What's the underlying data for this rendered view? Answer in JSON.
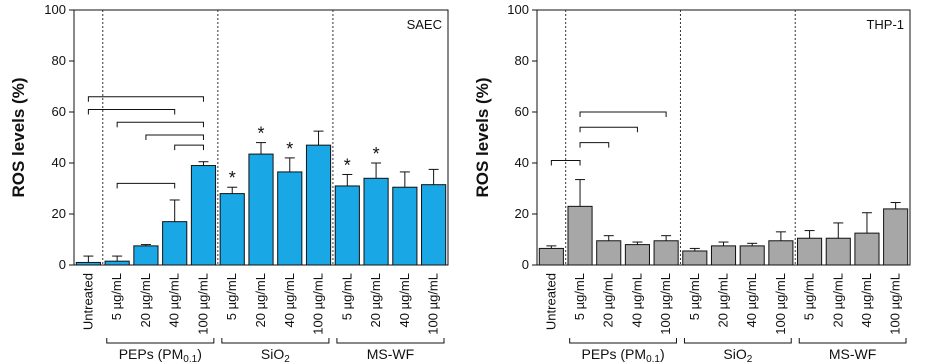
{
  "chart_data": [
    {
      "type": "bar",
      "panel_label": "SAEC",
      "ylabel": "ROS levels (%)",
      "ylim": [
        0,
        100
      ],
      "yticks": [
        "0",
        "20",
        "40",
        "60",
        "80",
        "100"
      ],
      "bar_color": "#1aa7e6",
      "categories": [
        "Untreated",
        "5 µg/mL",
        "20 µg/mL",
        "40 µg/mL",
        "100 µg/mL",
        "5 µg/mL",
        "20 µg/mL",
        "40 µg/mL",
        "100 µg/mL",
        "5 µg/mL",
        "20 µg/mL",
        "40 µg/mL",
        "100 µg/mL"
      ],
      "values": [
        1,
        1.5,
        7.5,
        17,
        39,
        28,
        43.5,
        36.5,
        47,
        31,
        34,
        30.5,
        31.5
      ],
      "errors": [
        2.5,
        2,
        0.5,
        8.5,
        1.5,
        2.5,
        4.5,
        5.5,
        5.5,
        4.5,
        6,
        6,
        6
      ],
      "significant": [
        false,
        false,
        false,
        false,
        false,
        true,
        true,
        true,
        false,
        true,
        true,
        false,
        false
      ],
      "star_symbol": "*",
      "groups": [
        {
          "label_main": "PEPs (PM",
          "label_sub": "0.1",
          "label_tail": ")",
          "start": 1,
          "end": 4
        },
        {
          "label_main": "SiO",
          "label_sub": "2",
          "label_tail": "",
          "start": 5,
          "end": 8
        },
        {
          "label_main": "MS-WF",
          "label_sub": "",
          "label_tail": "",
          "start": 9,
          "end": 12
        }
      ],
      "brackets": [
        {
          "from": 0,
          "to": 4,
          "y": 66
        },
        {
          "from": 0,
          "to": 3,
          "y": 61
        },
        {
          "from": 1,
          "to": 4,
          "y": 56
        },
        {
          "from": 2,
          "to": 4,
          "y": 51
        },
        {
          "from": 3,
          "to": 4,
          "y": 47
        },
        {
          "from": 1,
          "to": 3,
          "y": 32
        }
      ]
    },
    {
      "type": "bar",
      "panel_label": "THP-1",
      "ylabel": "ROS levels (%)",
      "ylim": [
        0,
        100
      ],
      "yticks": [
        "0",
        "20",
        "40",
        "60",
        "80",
        "100"
      ],
      "bar_color": "#a7a7a7",
      "categories": [
        "Untreated",
        "5 µg/mL",
        "20 µg/mL",
        "40 µg/mL",
        "100 µg/mL",
        "5 µg/mL",
        "20 µg/mL",
        "40 µg/mL",
        "100 µg/mL",
        "5 µg/mL",
        "20 µg/mL",
        "40 µg/mL",
        "100 µg/mL"
      ],
      "values": [
        6.5,
        23,
        9.5,
        8,
        9.5,
        5.5,
        7.5,
        7.5,
        9.5,
        10.5,
        10.5,
        12.5,
        22
      ],
      "errors": [
        1,
        10.5,
        2,
        1,
        2,
        1,
        1.5,
        1,
        3.5,
        3,
        6,
        8,
        2.5
      ],
      "significant": [
        false,
        false,
        false,
        false,
        false,
        false,
        false,
        false,
        false,
        false,
        false,
        false,
        false
      ],
      "star_symbol": "*",
      "groups": [
        {
          "label_main": "PEPs (PM",
          "label_sub": "0.1",
          "label_tail": ")",
          "start": 1,
          "end": 4
        },
        {
          "label_main": "SiO",
          "label_sub": "2",
          "label_tail": "",
          "start": 5,
          "end": 8
        },
        {
          "label_main": "MS-WF",
          "label_sub": "",
          "label_tail": "",
          "start": 9,
          "end": 12
        }
      ],
      "brackets": [
        {
          "from": 0,
          "to": 1,
          "y": 41
        },
        {
          "from": 1,
          "to": 4,
          "y": 60
        },
        {
          "from": 1,
          "to": 3,
          "y": 54
        },
        {
          "from": 1,
          "to": 2,
          "y": 48
        }
      ]
    }
  ]
}
